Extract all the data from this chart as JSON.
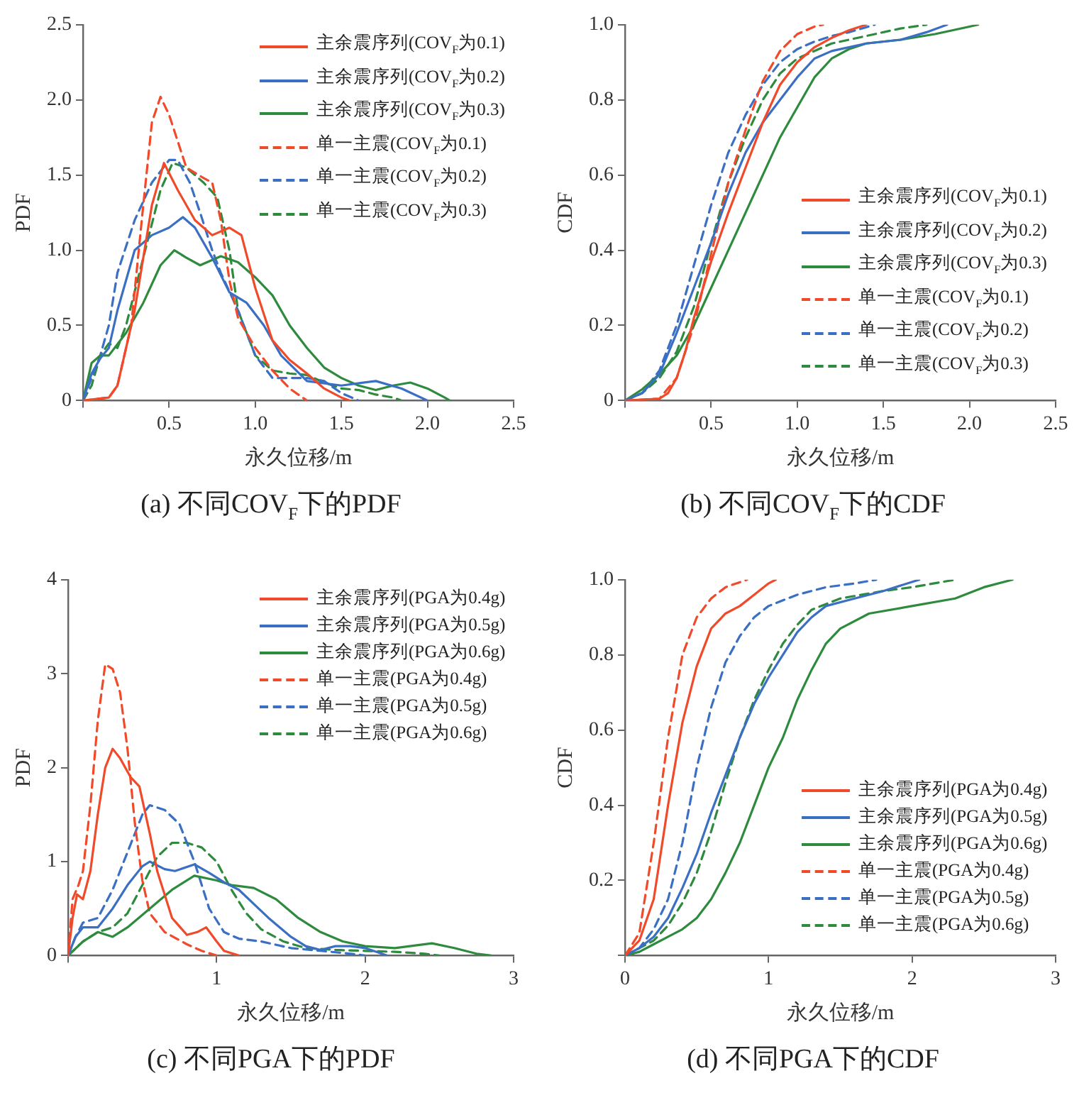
{
  "chart_data": [
    {
      "type": "line",
      "title": "(a) 不同COV$_{F}$下的PDF",
      "xlabel": "永久位移/m",
      "ylabel": "PDF",
      "xlim": [
        0,
        2.5
      ],
      "xticks": [
        {
          "value": 0,
          "label": null
        },
        0.5,
        {
          "value": 1,
          "label": "1.0"
        },
        1.5,
        {
          "value": 2,
          "label": "2.0"
        },
        2.5
      ],
      "ylim": [
        0,
        2.5
      ],
      "yticks": [
        0,
        0.5,
        {
          "value": 1,
          "label": "1.0"
        },
        1.5,
        {
          "value": 2,
          "label": "2.0"
        },
        2.5
      ],
      "grid": false,
      "legend": "top right",
      "marker": "none",
      "series": [
        {
          "name": "主余震序列(COV$_{F}$为0.1)",
          "color": "#f04a2a",
          "line_style": "solid",
          "x": [
            0,
            0.15,
            0.2,
            0.3,
            0.4,
            0.47,
            0.55,
            0.65,
            0.75,
            0.85,
            0.92,
            1.0,
            1.1,
            1.2,
            1.3,
            1.4,
            1.5,
            1.55
          ],
          "values": [
            0,
            0.02,
            0.1,
            0.6,
            1.3,
            1.58,
            1.4,
            1.2,
            1.1,
            1.15,
            1.1,
            0.75,
            0.4,
            0.27,
            0.18,
            0.08,
            0.02,
            0
          ]
        },
        {
          "name": "主余震序列(COV$_{F}$为0.2)",
          "color": "#3a6fc4",
          "line_style": "solid",
          "x": [
            0,
            0.05,
            0.1,
            0.15,
            0.2,
            0.3,
            0.4,
            0.5,
            0.58,
            0.65,
            0.75,
            0.85,
            0.95,
            1.05,
            1.15,
            1.3,
            1.5,
            1.7,
            1.85,
            2.0
          ],
          "values": [
            0,
            0.18,
            0.28,
            0.35,
            0.6,
            1.0,
            1.1,
            1.15,
            1.22,
            1.15,
            0.95,
            0.72,
            0.65,
            0.5,
            0.3,
            0.13,
            0.1,
            0.13,
            0.08,
            0
          ]
        },
        {
          "name": "主余震序列(COV$_{F}$为0.3)",
          "color": "#2e8b3e",
          "line_style": "solid",
          "x": [
            0,
            0.05,
            0.1,
            0.15,
            0.25,
            0.35,
            0.45,
            0.53,
            0.6,
            0.68,
            0.8,
            0.9,
            1.0,
            1.1,
            1.2,
            1.3,
            1.4,
            1.5,
            1.6,
            1.7,
            1.8,
            1.9,
            2.0,
            2.1,
            2.13
          ],
          "values": [
            0,
            0.25,
            0.3,
            0.3,
            0.45,
            0.65,
            0.9,
            1.0,
            0.95,
            0.9,
            0.96,
            0.92,
            0.82,
            0.7,
            0.5,
            0.35,
            0.22,
            0.15,
            0.1,
            0.07,
            0.1,
            0.12,
            0.08,
            0.02,
            0
          ]
        },
        {
          "name": "单一主震(COV$_{F}$为0.1)",
          "color": "#f04a2a",
          "line_style": "dashed",
          "x": [
            0,
            0.15,
            0.2,
            0.28,
            0.35,
            0.4,
            0.45,
            0.5,
            0.6,
            0.7,
            0.75,
            0.8,
            0.85,
            0.9,
            1.0,
            1.1,
            1.2,
            1.3
          ],
          "values": [
            0,
            0.02,
            0.1,
            0.5,
            1.3,
            1.85,
            2.02,
            1.9,
            1.55,
            1.48,
            1.45,
            1.2,
            0.8,
            0.55,
            0.35,
            0.2,
            0.08,
            0
          ]
        },
        {
          "name": "单一主震(COV$_{F}$为0.2)",
          "color": "#3a6fc4",
          "line_style": "dashed",
          "x": [
            0,
            0.05,
            0.1,
            0.15,
            0.2,
            0.3,
            0.4,
            0.5,
            0.55,
            0.62,
            0.68,
            0.75,
            0.8,
            0.9,
            1.0,
            1.1,
            1.2,
            1.3,
            1.4,
            1.5,
            1.6
          ],
          "values": [
            0,
            0.15,
            0.3,
            0.5,
            0.85,
            1.2,
            1.45,
            1.6,
            1.6,
            1.45,
            1.25,
            1.0,
            0.85,
            0.6,
            0.3,
            0.15,
            0.15,
            0.15,
            0.13,
            0.05,
            0
          ]
        },
        {
          "name": "单一主震(COV$_{F}$为0.3)",
          "color": "#2e8b3e",
          "line_style": "dashed",
          "x": [
            0,
            0.05,
            0.1,
            0.15,
            0.2,
            0.25,
            0.35,
            0.45,
            0.52,
            0.6,
            0.7,
            0.78,
            0.85,
            0.9,
            1.0,
            1.1,
            1.2,
            1.3,
            1.4,
            1.5,
            1.6,
            1.7,
            1.8,
            1.85
          ],
          "values": [
            0,
            0.1,
            0.3,
            0.38,
            0.35,
            0.5,
            0.95,
            1.4,
            1.58,
            1.55,
            1.45,
            1.35,
            1.0,
            0.6,
            0.3,
            0.2,
            0.18,
            0.17,
            0.12,
            0.08,
            0.07,
            0.04,
            0.02,
            0
          ]
        }
      ]
    },
    {
      "type": "line",
      "title": "(b) 不同COV$_{F}$下的CDF",
      "xlabel": "永久位移/m",
      "ylabel": "CDF",
      "xlim": [
        0,
        2.5
      ],
      "xticks": [
        {
          "value": 0,
          "label": null
        },
        0.5,
        {
          "value": 1,
          "label": "1.0"
        },
        1.5,
        {
          "value": 2,
          "label": "2.0"
        },
        2.5
      ],
      "ylim": [
        0,
        1
      ],
      "yticks": [
        0,
        0.2,
        0.4,
        0.6,
        0.8,
        {
          "value": 1,
          "label": "1.0"
        }
      ],
      "grid": false,
      "legend": "bottom right",
      "marker": "none",
      "series": [
        {
          "name": "主余震序列(COV$_{F}$为0.1)",
          "color": "#f04a2a",
          "line_style": "solid",
          "x": [
            0,
            0.2,
            0.25,
            0.3,
            0.35,
            0.4,
            0.5,
            0.6,
            0.7,
            0.8,
            0.9,
            1.0,
            1.1,
            1.2,
            1.3,
            1.4
          ],
          "values": [
            0,
            0.005,
            0.02,
            0.06,
            0.13,
            0.22,
            0.37,
            0.5,
            0.62,
            0.74,
            0.84,
            0.9,
            0.94,
            0.965,
            0.985,
            1.0
          ]
        },
        {
          "name": "主余震序列(COV$_{F}$为0.2)",
          "color": "#3a6fc4",
          "line_style": "solid",
          "x": [
            0,
            0.1,
            0.2,
            0.3,
            0.4,
            0.5,
            0.6,
            0.7,
            0.8,
            0.9,
            1.0,
            1.1,
            1.2,
            1.4,
            1.6,
            1.75,
            1.87
          ],
          "values": [
            0,
            0.02,
            0.07,
            0.18,
            0.3,
            0.42,
            0.55,
            0.66,
            0.74,
            0.8,
            0.86,
            0.91,
            0.93,
            0.95,
            0.96,
            0.98,
            1.0
          ]
        },
        {
          "name": "主余震序列(COV$_{F}$为0.3)",
          "color": "#2e8b3e",
          "line_style": "solid",
          "x": [
            0,
            0.1,
            0.2,
            0.3,
            0.4,
            0.5,
            0.6,
            0.7,
            0.8,
            0.9,
            1.0,
            1.1,
            1.2,
            1.3,
            1.4,
            1.6,
            1.8,
            2.0,
            2.05
          ],
          "values": [
            0,
            0.03,
            0.07,
            0.12,
            0.2,
            0.3,
            0.4,
            0.5,
            0.6,
            0.7,
            0.78,
            0.86,
            0.91,
            0.935,
            0.95,
            0.96,
            0.975,
            0.995,
            1.0
          ]
        },
        {
          "name": "单一主震(COV$_{F}$为0.1)",
          "color": "#f04a2a",
          "line_style": "dashed",
          "x": [
            0,
            0.2,
            0.3,
            0.4,
            0.5,
            0.6,
            0.7,
            0.8,
            0.9,
            1.0,
            1.1,
            1.15
          ],
          "values": [
            0,
            0.005,
            0.06,
            0.2,
            0.39,
            0.58,
            0.72,
            0.85,
            0.93,
            0.975,
            0.995,
            1.0
          ]
        },
        {
          "name": "单一主震(COV$_{F}$为0.2)",
          "color": "#3a6fc4",
          "line_style": "dashed",
          "x": [
            0,
            0.1,
            0.2,
            0.3,
            0.4,
            0.5,
            0.6,
            0.7,
            0.8,
            0.9,
            1.0,
            1.1,
            1.2,
            1.3,
            1.45
          ],
          "values": [
            0,
            0.02,
            0.08,
            0.2,
            0.36,
            0.52,
            0.66,
            0.76,
            0.84,
            0.9,
            0.935,
            0.955,
            0.97,
            0.98,
            1.0
          ]
        },
        {
          "name": "单一主震(COV$_{F}$为0.3)",
          "color": "#2e8b3e",
          "line_style": "dashed",
          "x": [
            0,
            0.1,
            0.2,
            0.3,
            0.4,
            0.5,
            0.6,
            0.7,
            0.8,
            0.9,
            1.0,
            1.2,
            1.4,
            1.6,
            1.75
          ],
          "values": [
            0,
            0.02,
            0.06,
            0.13,
            0.25,
            0.42,
            0.58,
            0.7,
            0.8,
            0.87,
            0.91,
            0.95,
            0.97,
            0.99,
            1.0
          ]
        }
      ]
    },
    {
      "type": "line",
      "title": "(c) 不同PGA下的PDF",
      "xlabel": "永久位移/m",
      "ylabel": "PDF",
      "xlim": [
        0,
        3
      ],
      "xticks": [
        {
          "value": 0,
          "label": null
        },
        1,
        2,
        3
      ],
      "ylim": [
        0,
        4
      ],
      "yticks": [
        0,
        1,
        2,
        3,
        4
      ],
      "grid": false,
      "legend": "top right",
      "marker": "none",
      "series": [
        {
          "name": "主余震序列(PGA为0.4g)",
          "color": "#f04a2a",
          "line_style": "solid",
          "x": [
            0,
            0.03,
            0.06,
            0.1,
            0.15,
            0.2,
            0.25,
            0.3,
            0.35,
            0.42,
            0.48,
            0.55,
            0.6,
            0.7,
            0.8,
            0.87,
            0.93,
            1.0,
            1.05,
            1.15
          ],
          "values": [
            0,
            0.4,
            0.65,
            0.6,
            0.9,
            1.5,
            2.0,
            2.2,
            2.1,
            1.9,
            1.8,
            1.3,
            0.9,
            0.4,
            0.22,
            0.25,
            0.3,
            0.15,
            0.05,
            0
          ]
        },
        {
          "name": "主余震序列(PGA为0.5g)",
          "color": "#3a6fc4",
          "line_style": "solid",
          "x": [
            0,
            0.05,
            0.1,
            0.2,
            0.3,
            0.4,
            0.5,
            0.55,
            0.65,
            0.72,
            0.85,
            0.95,
            1.05,
            1.15,
            1.25,
            1.35,
            1.5,
            1.6,
            1.7,
            1.8,
            1.9,
            2.0,
            2.15
          ],
          "values": [
            0,
            0.2,
            0.3,
            0.3,
            0.5,
            0.75,
            0.95,
            1.0,
            0.92,
            0.9,
            0.97,
            0.88,
            0.78,
            0.7,
            0.55,
            0.4,
            0.2,
            0.1,
            0.06,
            0.1,
            0.1,
            0.08,
            0
          ]
        },
        {
          "name": "主余震序列(PGA为0.6g)",
          "color": "#2e8b3e",
          "line_style": "solid",
          "x": [
            0,
            0.1,
            0.2,
            0.3,
            0.4,
            0.55,
            0.7,
            0.85,
            1.0,
            1.1,
            1.25,
            1.4,
            1.55,
            1.7,
            1.85,
            2.0,
            2.2,
            2.45,
            2.6,
            2.75,
            2.85
          ],
          "values": [
            0,
            0.15,
            0.25,
            0.2,
            0.3,
            0.5,
            0.7,
            0.85,
            0.8,
            0.75,
            0.72,
            0.6,
            0.4,
            0.25,
            0.15,
            0.1,
            0.08,
            0.13,
            0.08,
            0.02,
            0
          ]
        },
        {
          "name": "单一主震(PGA为0.4g)",
          "color": "#f04a2a",
          "line_style": "dashed",
          "x": [
            0,
            0.03,
            0.07,
            0.1,
            0.15,
            0.2,
            0.25,
            0.3,
            0.35,
            0.4,
            0.45,
            0.5,
            0.55,
            0.65,
            0.8,
            0.9,
            1.0
          ],
          "values": [
            0,
            0.6,
            0.75,
            0.9,
            1.6,
            2.5,
            3.1,
            3.05,
            2.8,
            2.2,
            1.4,
            0.8,
            0.45,
            0.25,
            0.12,
            0.05,
            0
          ]
        },
        {
          "name": "单一主震(PGA为0.5g)",
          "color": "#3a6fc4",
          "line_style": "dashed",
          "x": [
            0,
            0.05,
            0.1,
            0.2,
            0.3,
            0.4,
            0.5,
            0.55,
            0.65,
            0.75,
            0.85,
            0.95,
            1.05,
            1.15,
            1.3,
            1.5,
            1.7,
            1.9,
            2.0
          ],
          "values": [
            0,
            0.2,
            0.35,
            0.4,
            0.7,
            1.1,
            1.5,
            1.6,
            1.55,
            1.4,
            1.0,
            0.5,
            0.25,
            0.18,
            0.15,
            0.08,
            0.05,
            0.02,
            0
          ]
        },
        {
          "name": "单一主震(PGA为0.6g)",
          "color": "#2e8b3e",
          "line_style": "dashed",
          "x": [
            0,
            0.1,
            0.2,
            0.3,
            0.4,
            0.5,
            0.6,
            0.7,
            0.8,
            0.9,
            1.0,
            1.1,
            1.2,
            1.3,
            1.45,
            1.6,
            1.8,
            2.0,
            2.2,
            2.4,
            2.5
          ],
          "values": [
            0,
            0.15,
            0.25,
            0.3,
            0.45,
            0.75,
            1.05,
            1.2,
            1.2,
            1.15,
            1.0,
            0.7,
            0.45,
            0.28,
            0.15,
            0.08,
            0.06,
            0.05,
            0.04,
            0.02,
            0
          ]
        }
      ]
    },
    {
      "type": "line",
      "title": "(d) 不同PGA下的CDF",
      "xlabel": "永久位移/m",
      "ylabel": "CDF",
      "xlim": [
        0,
        3
      ],
      "xticks": [
        0,
        1,
        2,
        3
      ],
      "ylim": [
        0,
        1
      ],
      "yticks": [
        {
          "value": 0,
          "label": null
        },
        0.2,
        0.4,
        0.6,
        0.8,
        {
          "value": 1,
          "label": "1.0"
        }
      ],
      "grid": false,
      "legend": "bottom right",
      "marker": "none",
      "series": [
        {
          "name": "主余震序列(PGA为0.4g)",
          "color": "#f04a2a",
          "line_style": "solid",
          "x": [
            0,
            0.1,
            0.2,
            0.3,
            0.4,
            0.5,
            0.6,
            0.7,
            0.8,
            0.9,
            1.0,
            1.05
          ],
          "values": [
            0,
            0.04,
            0.15,
            0.4,
            0.62,
            0.77,
            0.87,
            0.91,
            0.93,
            0.96,
            0.99,
            1.0
          ]
        },
        {
          "name": "主余震序列(PGA为0.5g)",
          "color": "#3a6fc4",
          "line_style": "solid",
          "x": [
            0,
            0.1,
            0.2,
            0.3,
            0.4,
            0.5,
            0.6,
            0.7,
            0.8,
            0.9,
            1.0,
            1.1,
            1.2,
            1.3,
            1.4,
            1.6,
            1.8,
            2.05
          ],
          "values": [
            0,
            0.02,
            0.05,
            0.1,
            0.18,
            0.27,
            0.38,
            0.48,
            0.58,
            0.67,
            0.74,
            0.8,
            0.86,
            0.9,
            0.93,
            0.95,
            0.97,
            1.0
          ]
        },
        {
          "name": "主余震序列(PGA为0.6g)",
          "color": "#2e8b3e",
          "line_style": "solid",
          "x": [
            0,
            0.1,
            0.2,
            0.3,
            0.4,
            0.5,
            0.6,
            0.7,
            0.8,
            0.9,
            1.0,
            1.1,
            1.2,
            1.3,
            1.4,
            1.5,
            1.7,
            2.0,
            2.3,
            2.5,
            2.7
          ],
          "values": [
            0,
            0.01,
            0.03,
            0.05,
            0.07,
            0.1,
            0.15,
            0.22,
            0.3,
            0.4,
            0.5,
            0.58,
            0.68,
            0.76,
            0.83,
            0.87,
            0.91,
            0.93,
            0.95,
            0.98,
            1.0
          ]
        },
        {
          "name": "单一主震(PGA为0.4g)",
          "color": "#f04a2a",
          "line_style": "dashed",
          "x": [
            0,
            0.1,
            0.2,
            0.3,
            0.4,
            0.5,
            0.6,
            0.7,
            0.85
          ],
          "values": [
            0,
            0.06,
            0.3,
            0.58,
            0.8,
            0.9,
            0.95,
            0.98,
            1.0
          ]
        },
        {
          "name": "单一主震(PGA为0.5g)",
          "color": "#3a6fc4",
          "line_style": "dashed",
          "x": [
            0,
            0.1,
            0.2,
            0.3,
            0.4,
            0.5,
            0.6,
            0.7,
            0.8,
            0.9,
            1.0,
            1.2,
            1.4,
            1.6,
            1.75
          ],
          "values": [
            0,
            0.02,
            0.07,
            0.15,
            0.3,
            0.5,
            0.66,
            0.78,
            0.85,
            0.9,
            0.93,
            0.96,
            0.98,
            0.99,
            1.0
          ]
        },
        {
          "name": "单一主震(PGA为0.6g)",
          "color": "#2e8b3e",
          "line_style": "dashed",
          "x": [
            0,
            0.1,
            0.2,
            0.3,
            0.4,
            0.5,
            0.6,
            0.7,
            0.8,
            0.9,
            1.0,
            1.1,
            1.2,
            1.3,
            1.5,
            1.8,
            2.0,
            2.3
          ],
          "values": [
            0,
            0.02,
            0.04,
            0.08,
            0.14,
            0.22,
            0.33,
            0.46,
            0.58,
            0.68,
            0.76,
            0.83,
            0.88,
            0.92,
            0.95,
            0.97,
            0.98,
            1.0
          ]
        }
      ]
    }
  ]
}
